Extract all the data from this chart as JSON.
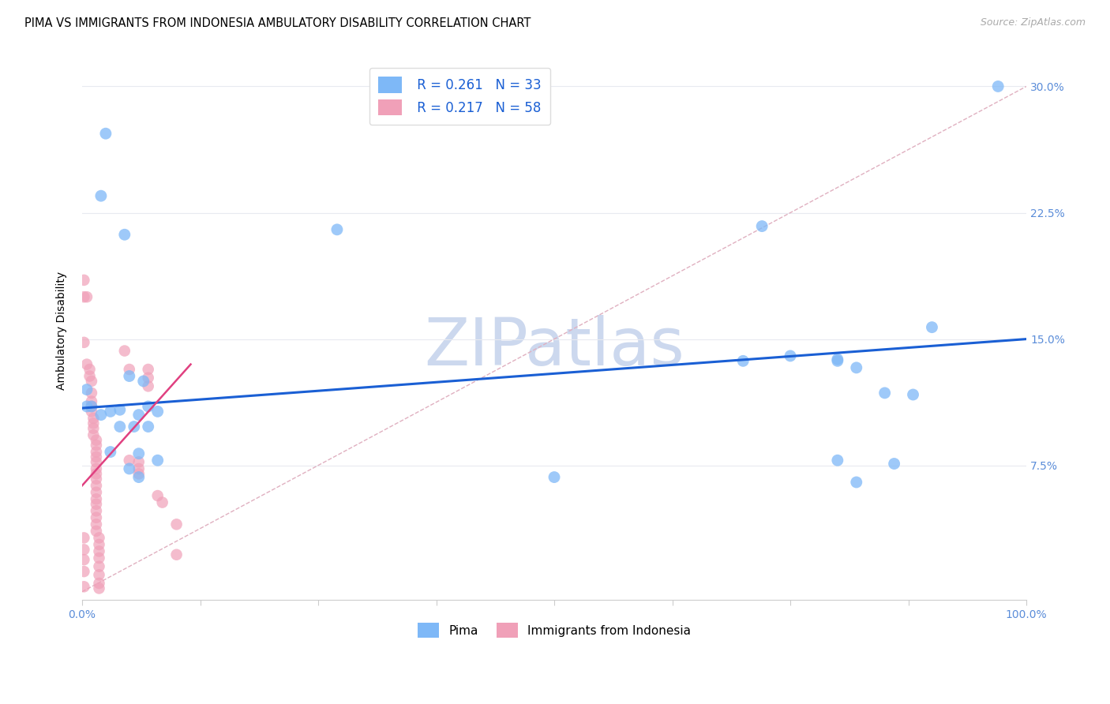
{
  "title": "PIMA VS IMMIGRANTS FROM INDONESIA AMBULATORY DISABILITY CORRELATION CHART",
  "source": "Source: ZipAtlas.com",
  "ylabel": "Ambulatory Disability",
  "xlim": [
    0,
    1.0
  ],
  "ylim": [
    -0.005,
    0.315
  ],
  "plot_ylim": [
    -0.005,
    0.315
  ],
  "yticks": [
    0.075,
    0.15,
    0.225,
    0.3
  ],
  "ytick_labels": [
    "7.5%",
    "15.0%",
    "22.5%",
    "30.0%"
  ],
  "xticks": [
    0.0,
    0.125,
    0.25,
    0.375,
    0.5,
    0.625,
    0.75,
    0.875,
    1.0
  ],
  "xtick_labels": [
    "0.0%",
    "",
    "",
    "",
    "",
    "",
    "",
    "",
    "100.0%"
  ],
  "background_color": "#ffffff",
  "watermark": "ZIPatlas",
  "pima_color": "#7eb8f7",
  "indonesia_color": "#f0a0b8",
  "pima_scatter": [
    [
      0.025,
      0.272
    ],
    [
      0.045,
      0.212
    ],
    [
      0.02,
      0.235
    ],
    [
      0.27,
      0.215
    ],
    [
      0.005,
      0.12
    ],
    [
      0.005,
      0.11
    ],
    [
      0.05,
      0.128
    ],
    [
      0.065,
      0.125
    ],
    [
      0.03,
      0.107
    ],
    [
      0.04,
      0.108
    ],
    [
      0.02,
      0.105
    ],
    [
      0.01,
      0.11
    ],
    [
      0.08,
      0.107
    ],
    [
      0.06,
      0.105
    ],
    [
      0.07,
      0.11
    ],
    [
      0.055,
      0.098
    ],
    [
      0.04,
      0.098
    ],
    [
      0.07,
      0.098
    ],
    [
      0.03,
      0.083
    ],
    [
      0.06,
      0.082
    ],
    [
      0.05,
      0.073
    ],
    [
      0.06,
      0.068
    ],
    [
      0.08,
      0.078
    ],
    [
      0.5,
      0.068
    ],
    [
      0.7,
      0.137
    ],
    [
      0.75,
      0.14
    ],
    [
      0.8,
      0.138
    ],
    [
      0.8,
      0.137
    ],
    [
      0.72,
      0.217
    ],
    [
      0.82,
      0.133
    ],
    [
      0.85,
      0.118
    ],
    [
      0.88,
      0.117
    ],
    [
      0.8,
      0.078
    ],
    [
      0.82,
      0.065
    ],
    [
      0.86,
      0.076
    ],
    [
      0.9,
      0.157
    ],
    [
      0.97,
      0.3
    ]
  ],
  "indonesia_scatter": [
    [
      0.002,
      0.185
    ],
    [
      0.002,
      0.175
    ],
    [
      0.005,
      0.175
    ],
    [
      0.002,
      0.148
    ],
    [
      0.005,
      0.135
    ],
    [
      0.008,
      0.132
    ],
    [
      0.008,
      0.128
    ],
    [
      0.01,
      0.125
    ],
    [
      0.01,
      0.118
    ],
    [
      0.01,
      0.113
    ],
    [
      0.01,
      0.11
    ],
    [
      0.01,
      0.107
    ],
    [
      0.012,
      0.103
    ],
    [
      0.012,
      0.1
    ],
    [
      0.012,
      0.097
    ],
    [
      0.012,
      0.093
    ],
    [
      0.015,
      0.09
    ],
    [
      0.015,
      0.087
    ],
    [
      0.015,
      0.083
    ],
    [
      0.015,
      0.08
    ],
    [
      0.015,
      0.077
    ],
    [
      0.015,
      0.073
    ],
    [
      0.015,
      0.07
    ],
    [
      0.015,
      0.067
    ],
    [
      0.015,
      0.063
    ],
    [
      0.015,
      0.059
    ],
    [
      0.015,
      0.055
    ],
    [
      0.015,
      0.052
    ],
    [
      0.015,
      0.048
    ],
    [
      0.015,
      0.044
    ],
    [
      0.015,
      0.04
    ],
    [
      0.015,
      0.036
    ],
    [
      0.018,
      0.032
    ],
    [
      0.018,
      0.028
    ],
    [
      0.018,
      0.024
    ],
    [
      0.018,
      0.02
    ],
    [
      0.018,
      0.015
    ],
    [
      0.018,
      0.01
    ],
    [
      0.018,
      0.005
    ],
    [
      0.018,
      0.002
    ],
    [
      0.002,
      0.003
    ],
    [
      0.002,
      0.012
    ],
    [
      0.002,
      0.019
    ],
    [
      0.002,
      0.025
    ],
    [
      0.002,
      0.032
    ],
    [
      0.045,
      0.143
    ],
    [
      0.05,
      0.132
    ],
    [
      0.05,
      0.078
    ],
    [
      0.06,
      0.077
    ],
    [
      0.06,
      0.073
    ],
    [
      0.06,
      0.07
    ],
    [
      0.07,
      0.132
    ],
    [
      0.07,
      0.127
    ],
    [
      0.07,
      0.122
    ],
    [
      0.08,
      0.057
    ],
    [
      0.085,
      0.053
    ],
    [
      0.1,
      0.04
    ],
    [
      0.1,
      0.022
    ]
  ],
  "pima_line_color": "#1a5fd4",
  "indonesia_line_color": "#e04080",
  "pima_line_x": [
    0.0,
    1.0
  ],
  "pima_line_y": [
    0.109,
    0.15
  ],
  "indonesia_line_x": [
    0.0,
    0.115
  ],
  "indonesia_line_y": [
    0.063,
    0.135
  ],
  "diag_line_color": "#e0b0c0",
  "diag_line_x": [
    0.0,
    1.0
  ],
  "diag_line_y": [
    0.0,
    0.3
  ],
  "title_fontsize": 10.5,
  "source_fontsize": 9,
  "axis_fontsize": 10,
  "tick_fontsize": 10,
  "tick_color": "#5b8dd9",
  "grid_color": "#e8eaf0",
  "watermark_color": "#ccd8ee",
  "watermark_fontsize": 60,
  "legend_R_N_color": "#1a5fd4",
  "legend_N_color": "#cc2244"
}
